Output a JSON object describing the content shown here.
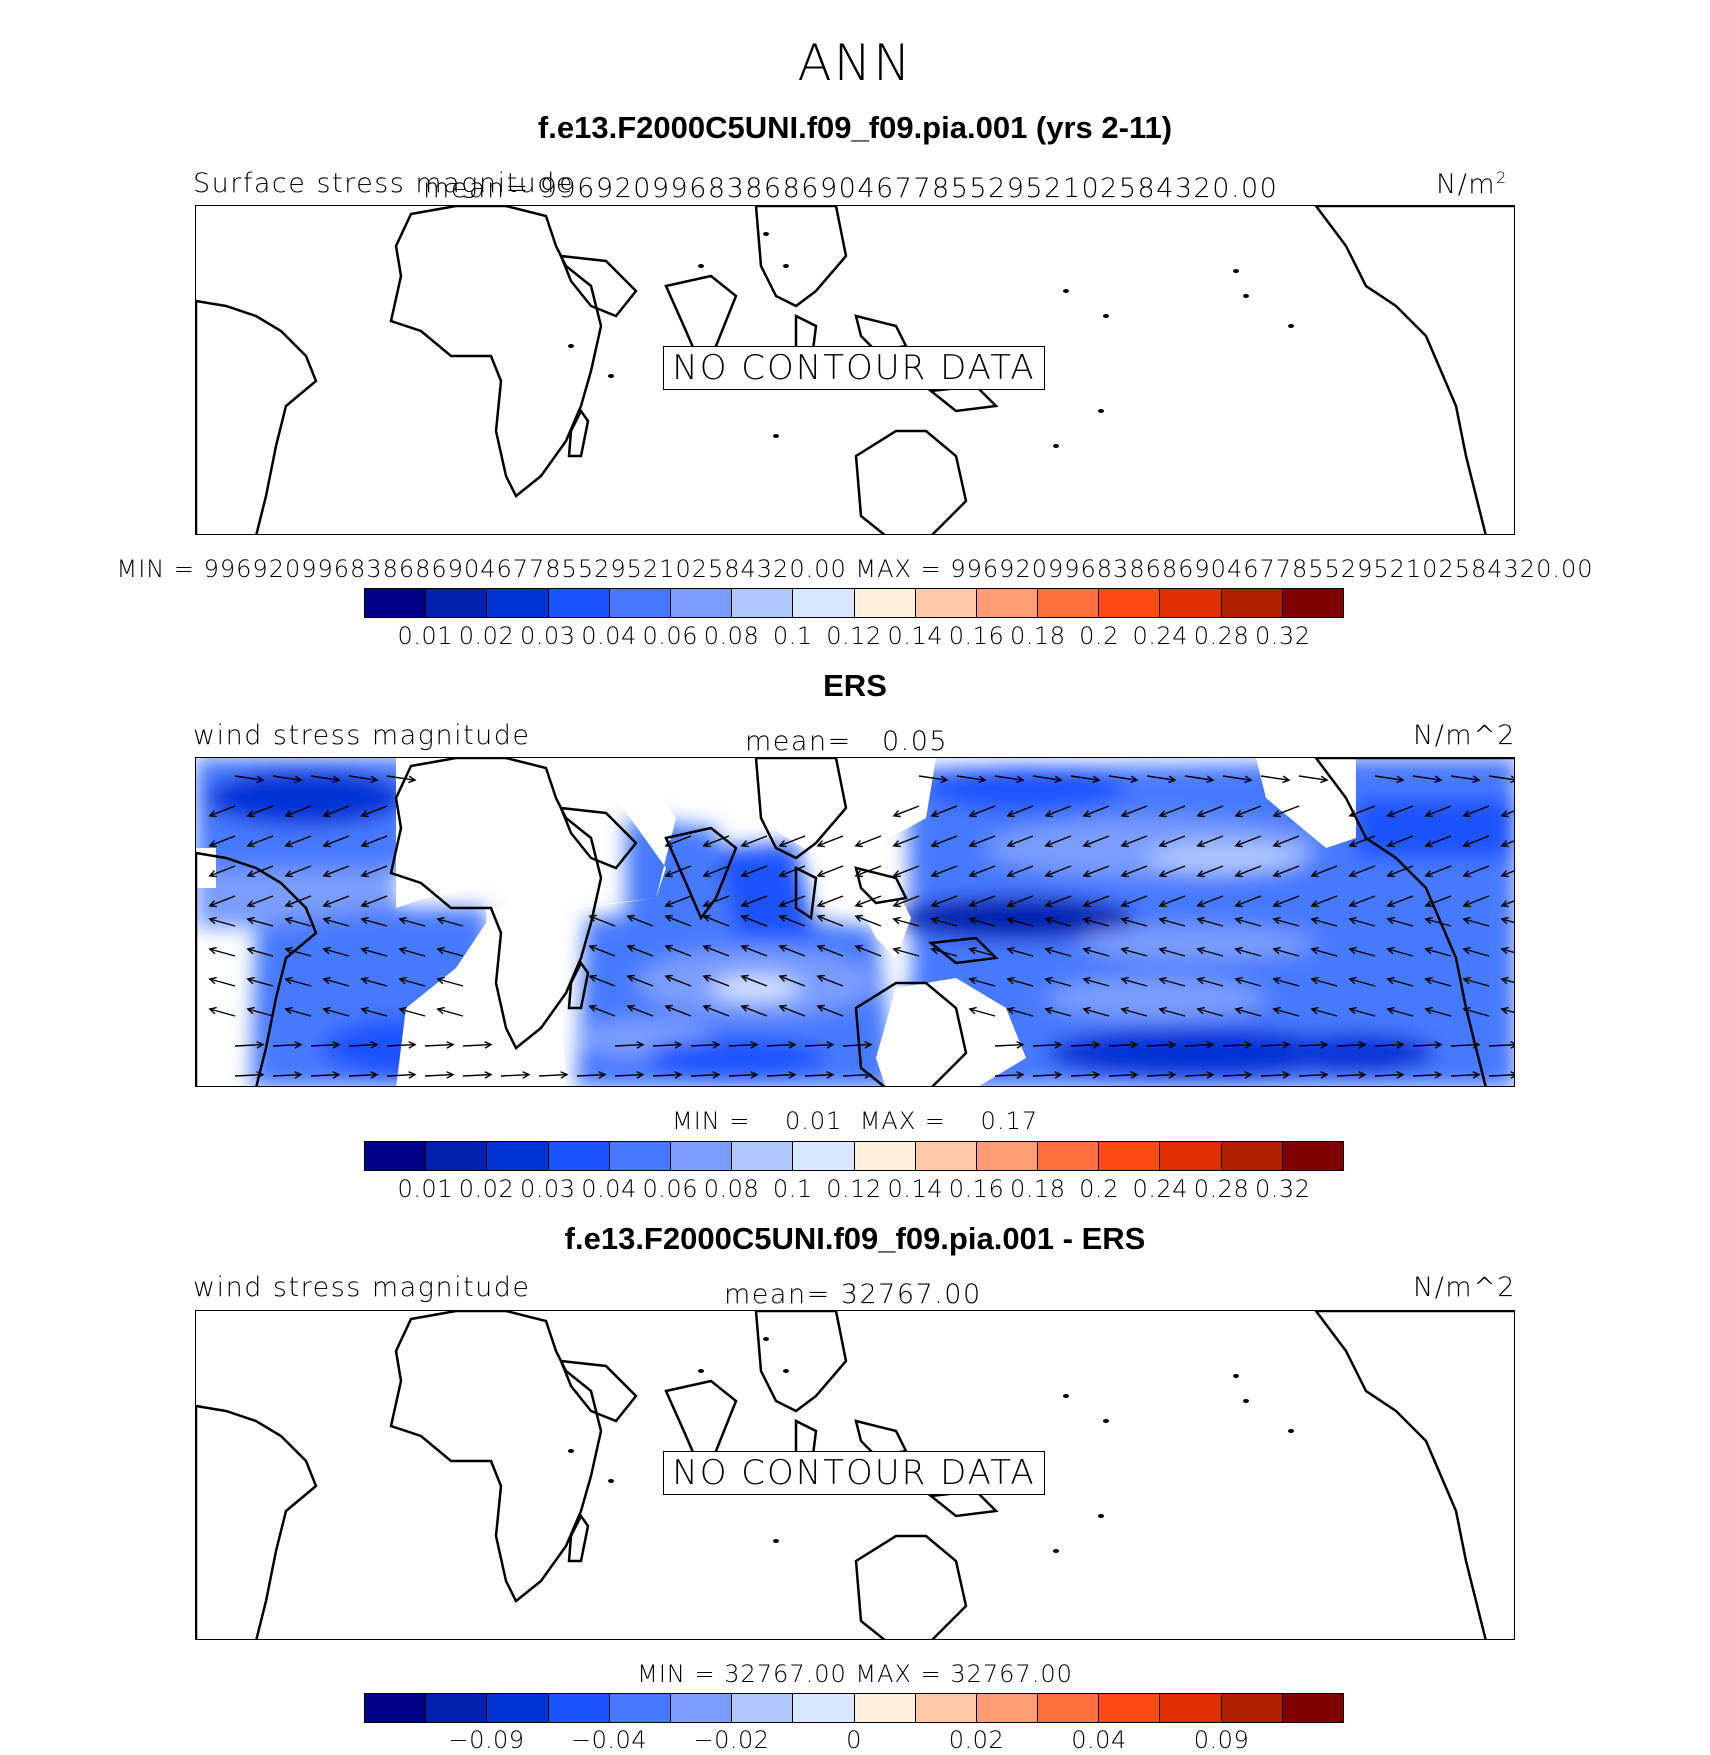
{
  "suptitle": "ANN",
  "colorbar_colors": [
    "#00008b",
    "#0020b0",
    "#0033d6",
    "#1a53ff",
    "#4779ff",
    "#7a9dff",
    "#b0c8ff",
    "#d8e6ff",
    "#fff0dc",
    "#ffc8a6",
    "#ff9e75",
    "#ff7040",
    "#ff4a14",
    "#e02e00",
    "#b01e00",
    "#800000"
  ],
  "panel1": {
    "title": "f.e13.F2000C5UNI.f09_f09.pia.001 (yrs 2-11)",
    "left_label": "Surface stress magnitude",
    "mean_label": "mean=",
    "mean_value": "9969209968386869046778552952102584320.00",
    "units": "N/m",
    "units_sup": "2",
    "no_data": "NO CONTOUR DATA",
    "min_label": "MIN =",
    "min_value": "9969209968386869046778552952102584320.00",
    "max_label": "MAX =",
    "max_value": "9969209968386869046778552952102584320.00",
    "ticks": [
      "0.01",
      "0.02",
      "0.03",
      "0.04",
      "0.06",
      "0.08",
      "0.1",
      "0.12",
      "0.14",
      "0.16",
      "0.18",
      "0.2",
      "0.24",
      "0.28",
      "0.32"
    ]
  },
  "panel2": {
    "title": "ERS",
    "left_label": "wind stress magnitude",
    "mean_label": "mean=",
    "mean_value": "0.05",
    "units": "N/m^2",
    "min_label": "MIN =",
    "min_value": "0.01",
    "max_label": "MAX =",
    "max_value": "0.17",
    "ticks": [
      "0.01",
      "0.02",
      "0.03",
      "0.04",
      "0.06",
      "0.08",
      "0.1",
      "0.12",
      "0.14",
      "0.16",
      "0.18",
      "0.2",
      "0.24",
      "0.28",
      "0.32"
    ]
  },
  "panel3": {
    "title": "f.e13.F2000C5UNI.f09_f09.pia.001 - ERS",
    "left_label": "wind stress magnitude",
    "mean_label": "mean=",
    "mean_value": "32767.00",
    "units": "N/m^2",
    "no_data": "NO CONTOUR DATA",
    "min_label": "MIN =",
    "min_value": "32767.00",
    "max_label": "MAX =",
    "max_value": "32767.00",
    "ticks": [
      "-0.09",
      "-0.04",
      "-0.02",
      "0",
      "0.02",
      "0.04",
      "0.09"
    ]
  }
}
